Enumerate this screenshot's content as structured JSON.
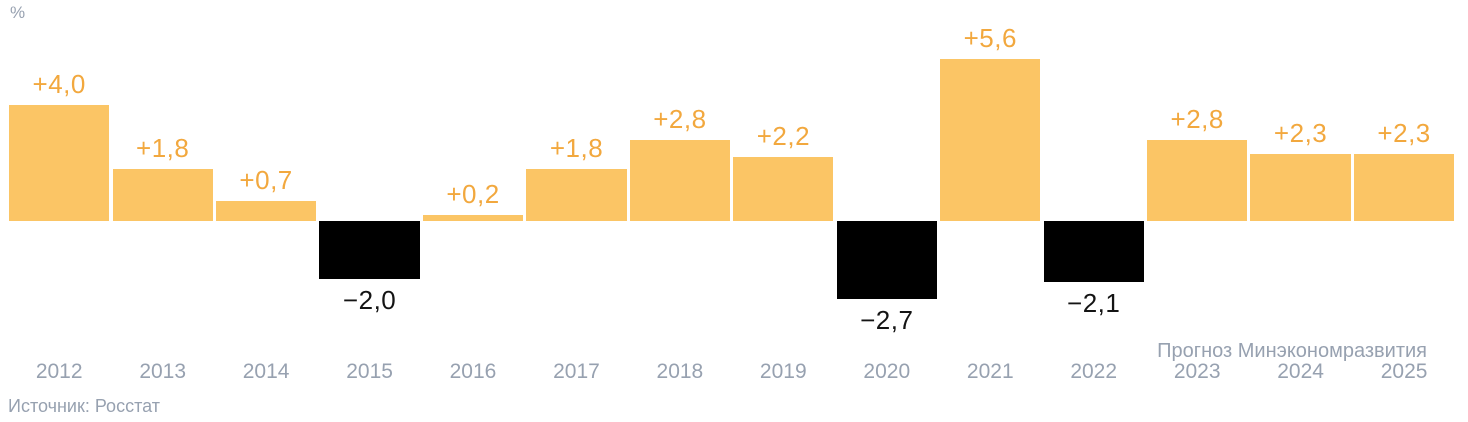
{
  "unit_label": "%",
  "forecast_note": "Прогноз Минэкономразвития",
  "source": "Источник: Росстат",
  "colors": {
    "bar_positive": "#FBC565",
    "bar_negative": "#000000",
    "label_positive": "#F2A83E",
    "label_negative": "#141414",
    "muted_text": "#97A1B0"
  },
  "chart_data": {
    "type": "bar",
    "title": "",
    "xlabel": "",
    "ylabel": "%",
    "legend": "none",
    "grid": false,
    "baseline": 0,
    "ylim": [
      -3,
      6
    ],
    "categories": [
      "2012",
      "2013",
      "2014",
      "2015",
      "2016",
      "2017",
      "2018",
      "2019",
      "2020",
      "2021",
      "2022",
      "2023",
      "2024",
      "2025"
    ],
    "values": [
      4.0,
      1.8,
      0.7,
      -2.0,
      0.2,
      1.8,
      2.8,
      2.2,
      -2.7,
      5.6,
      -2.1,
      2.8,
      2.3,
      2.3
    ],
    "value_labels": [
      "+4,0",
      "+1,8",
      "+0,7",
      "−2,0",
      "+0,2",
      "+1,8",
      "+2,8",
      "+2,2",
      "−2,7",
      "+5,6",
      "−2,1",
      "+2,8",
      "+2,3",
      "+2,3"
    ],
    "annotations": [
      {
        "text": "Прогноз Минэкономразвития",
        "applies_to": [
          "2023",
          "2024",
          "2025"
        ],
        "position": "above-right-years"
      }
    ]
  }
}
